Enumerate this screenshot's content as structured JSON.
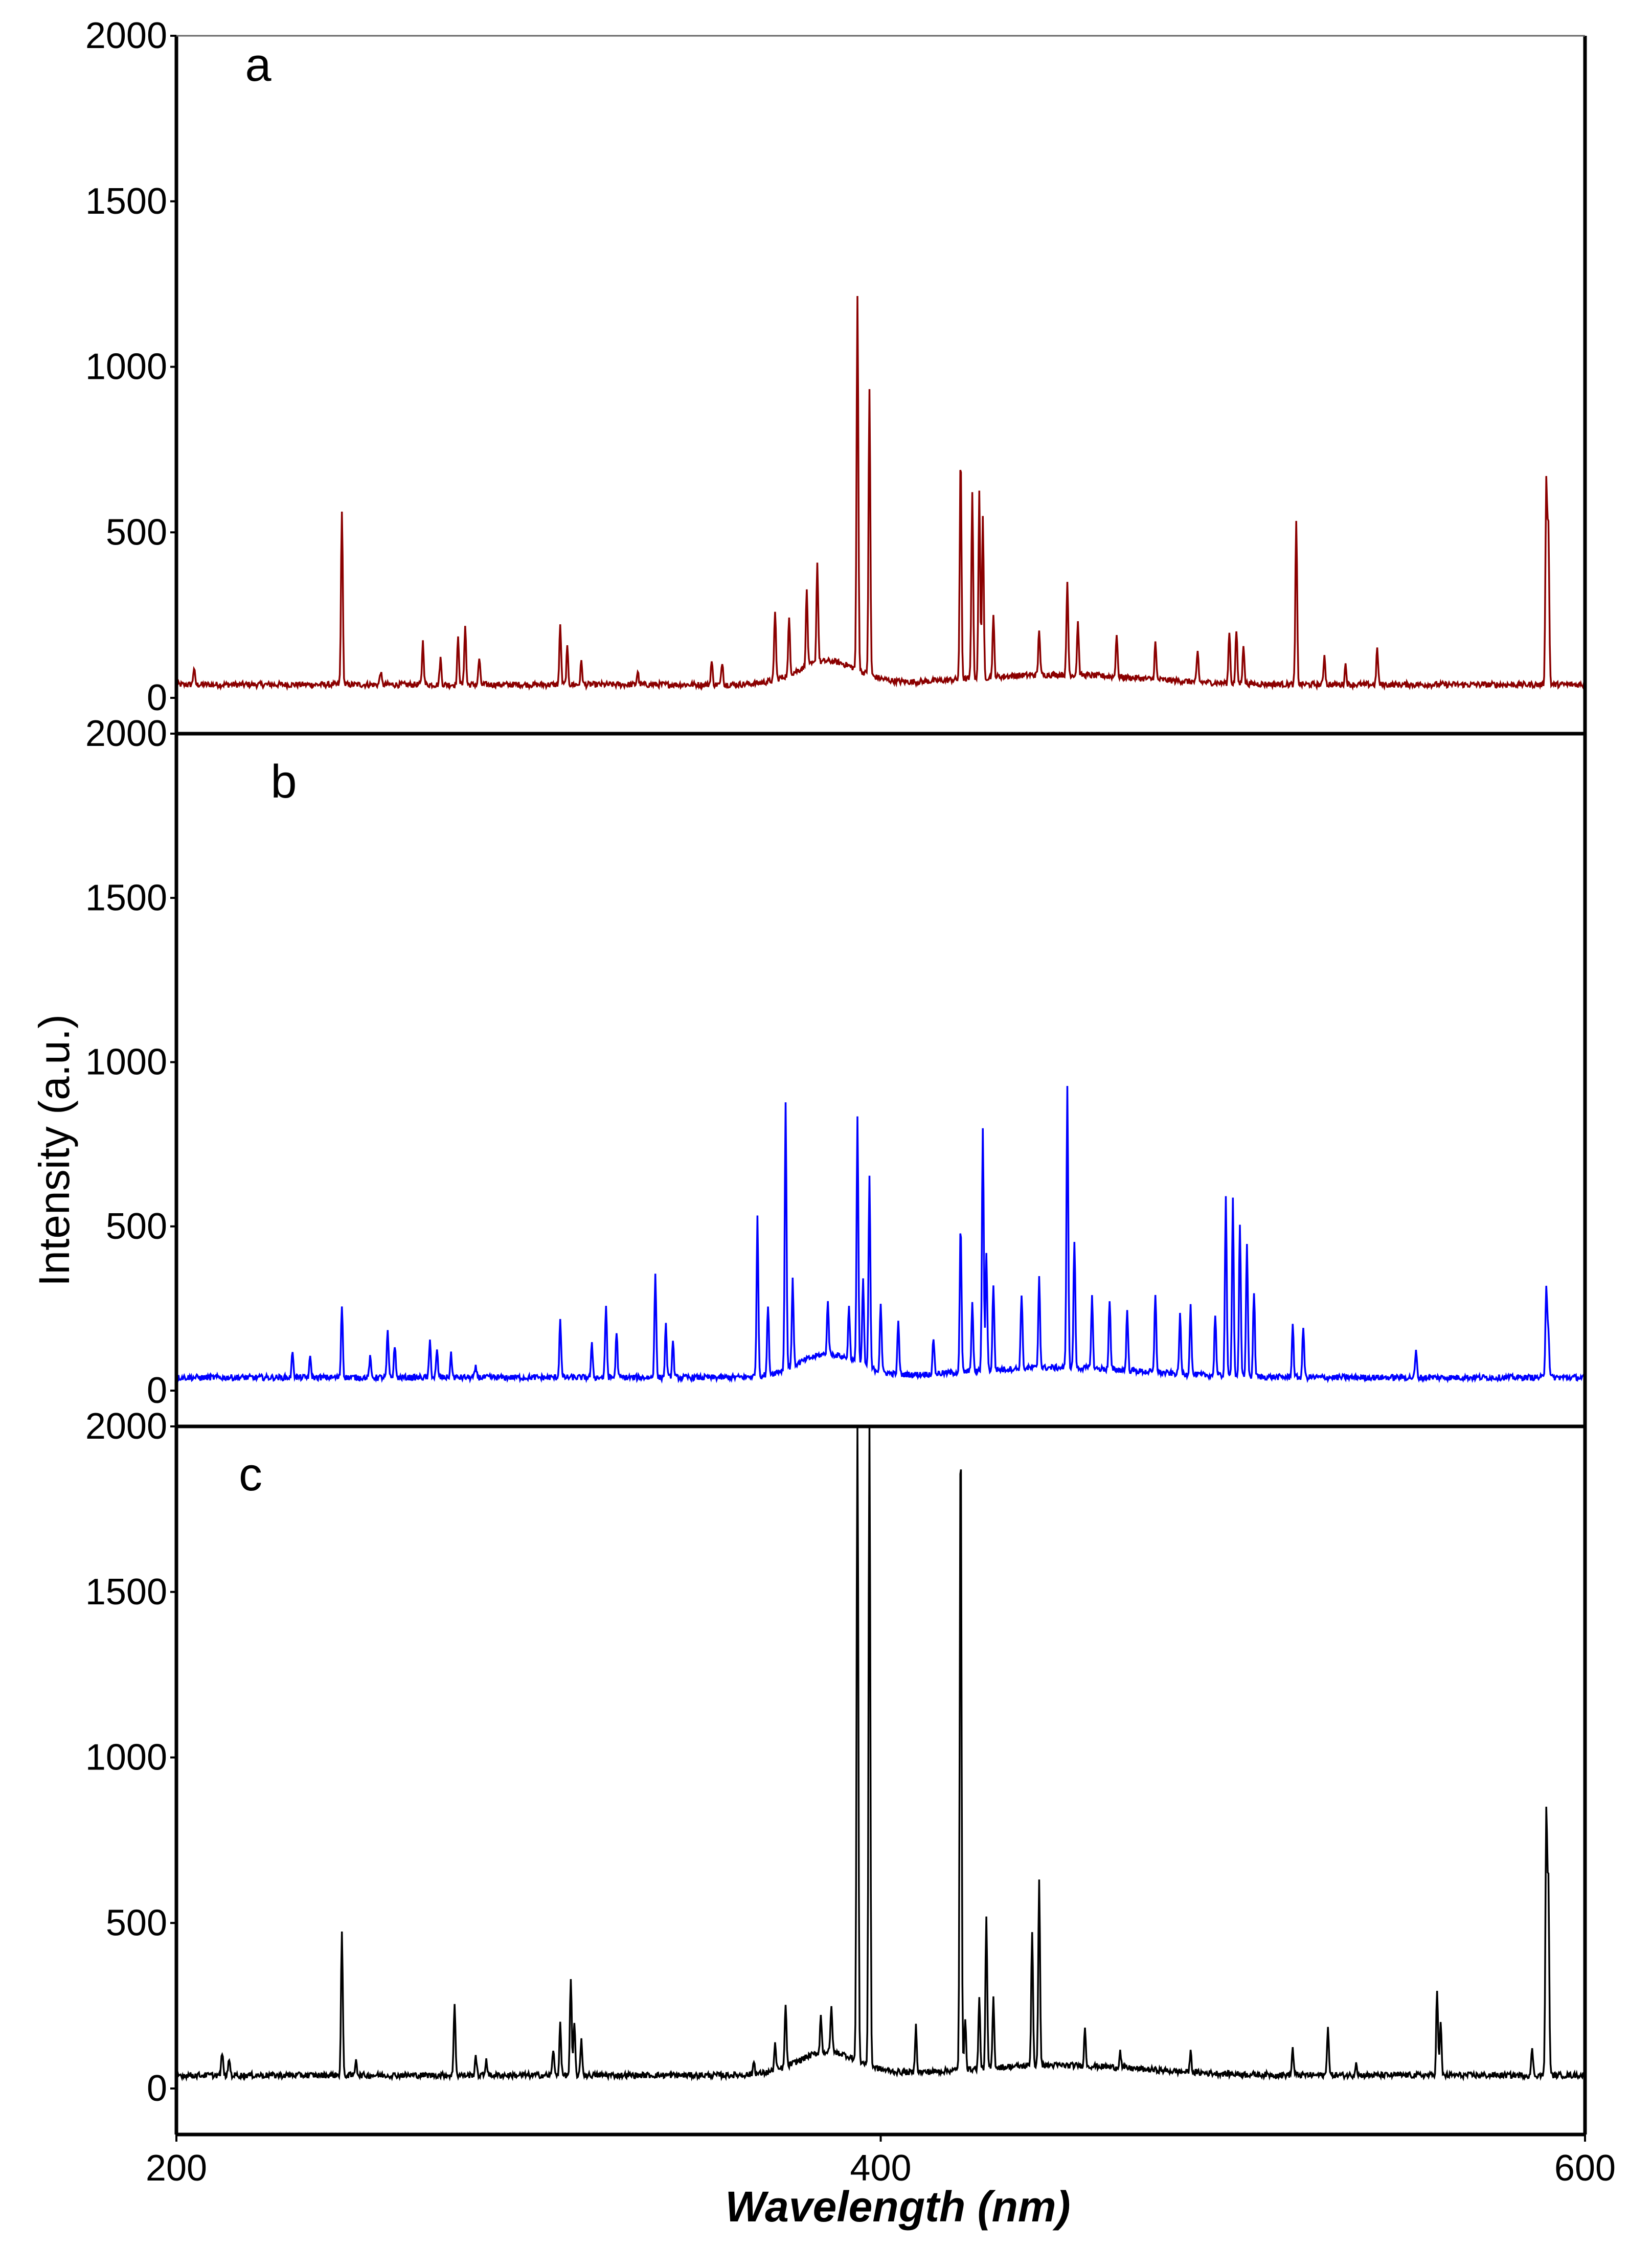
{
  "chart_data": {
    "type": "line",
    "xlabel": "Wavelength (nm)",
    "ylabel": "Intensity (a.u.)",
    "xlim": [
      200,
      600
    ],
    "ylim": [
      0,
      2000
    ],
    "x_ticks": [
      "200",
      "400",
      "600"
    ],
    "y_ticks": [
      "0",
      "500",
      "1000",
      "1500",
      "2000"
    ],
    "grid": false,
    "legend": "none",
    "baseline": 40,
    "panels": [
      {
        "label": "a",
        "color": "#8b0000",
        "peaks": [
          [
            205,
            90
          ],
          [
            247,
            570
          ],
          [
            258,
            80
          ],
          [
            270,
            170
          ],
          [
            275,
            120
          ],
          [
            280,
            180
          ],
          [
            282,
            220
          ],
          [
            286,
            120
          ],
          [
            309,
            220
          ],
          [
            311,
            150
          ],
          [
            315,
            110
          ],
          [
            331,
            80
          ],
          [
            352,
            110
          ],
          [
            355,
            110
          ],
          [
            370,
            250
          ],
          [
            374,
            210
          ],
          [
            379,
            270
          ],
          [
            382,
            340
          ],
          [
            393.4,
            1170
          ],
          [
            396.8,
            900
          ],
          [
            422.7,
            720
          ],
          [
            426,
            610
          ],
          [
            428,
            600
          ],
          [
            429,
            520
          ],
          [
            432,
            220
          ],
          [
            445,
            180
          ],
          [
            453,
            320
          ],
          [
            456,
            200
          ],
          [
            467,
            170
          ],
          [
            478,
            150
          ],
          [
            490,
            130
          ],
          [
            499,
            200
          ],
          [
            501,
            200
          ],
          [
            503,
            160
          ],
          [
            518,
            530
          ],
          [
            526,
            130
          ],
          [
            532,
            100
          ],
          [
            541,
            150
          ],
          [
            589.0,
            650
          ],
          [
            589.6,
            500
          ]
        ]
      },
      {
        "label": "b",
        "color": "#0000ff",
        "peaks": [
          [
            233,
            120
          ],
          [
            238,
            100
          ],
          [
            247,
            260
          ],
          [
            255,
            100
          ],
          [
            260,
            180
          ],
          [
            262,
            140
          ],
          [
            272,
            150
          ],
          [
            274,
            120
          ],
          [
            278,
            110
          ],
          [
            285,
            70
          ],
          [
            309,
            220
          ],
          [
            318,
            140
          ],
          [
            322,
            260
          ],
          [
            325,
            180
          ],
          [
            336,
            360
          ],
          [
            339,
            200
          ],
          [
            341,
            150
          ],
          [
            365,
            520
          ],
          [
            368,
            250
          ],
          [
            373,
            850
          ],
          [
            375,
            300
          ],
          [
            385,
            200
          ],
          [
            391,
            200
          ],
          [
            393.4,
            790
          ],
          [
            395,
            300
          ],
          [
            396.8,
            620
          ],
          [
            400,
            250
          ],
          [
            405,
            200
          ],
          [
            415,
            150
          ],
          [
            422.7,
            490
          ],
          [
            426,
            250
          ],
          [
            429,
            780
          ],
          [
            430,
            400
          ],
          [
            432,
            300
          ],
          [
            440,
            270
          ],
          [
            445,
            320
          ],
          [
            453,
            900
          ],
          [
            455,
            430
          ],
          [
            460,
            260
          ],
          [
            465,
            250
          ],
          [
            470,
            220
          ],
          [
            478,
            280
          ],
          [
            485,
            220
          ],
          [
            488,
            250
          ],
          [
            495,
            230
          ],
          [
            498,
            580
          ],
          [
            500,
            580
          ],
          [
            502,
            500
          ],
          [
            504,
            450
          ],
          [
            506,
            300
          ],
          [
            517,
            200
          ],
          [
            520,
            190
          ],
          [
            552,
            120
          ],
          [
            589.0,
            320
          ],
          [
            589.6,
            180
          ]
        ]
      },
      {
        "label": "c",
        "color": "#000000",
        "peaks": [
          [
            213,
            110
          ],
          [
            215,
            90
          ],
          [
            247,
            470
          ],
          [
            251,
            90
          ],
          [
            279,
            260
          ],
          [
            285,
            100
          ],
          [
            288,
            90
          ],
          [
            307,
            120
          ],
          [
            309,
            200
          ],
          [
            312,
            330
          ],
          [
            313,
            200
          ],
          [
            315,
            150
          ],
          [
            364,
            80
          ],
          [
            370,
            120
          ],
          [
            373,
            230
          ],
          [
            383,
            150
          ],
          [
            386,
            180
          ],
          [
            393.4,
            2000
          ],
          [
            396.8,
            2000
          ],
          [
            410,
            180
          ],
          [
            422.7,
            2000
          ],
          [
            424,
            200
          ],
          [
            428,
            250
          ],
          [
            430,
            490
          ],
          [
            432,
            250
          ],
          [
            443,
            450
          ],
          [
            445,
            600
          ],
          [
            458,
            150
          ],
          [
            468,
            90
          ],
          [
            488,
            100
          ],
          [
            517,
            120
          ],
          [
            527,
            190
          ],
          [
            535,
            80
          ],
          [
            558,
            300
          ],
          [
            559,
            200
          ],
          [
            585,
            120
          ],
          [
            589.0,
            830
          ],
          [
            589.6,
            600
          ]
        ]
      }
    ]
  }
}
